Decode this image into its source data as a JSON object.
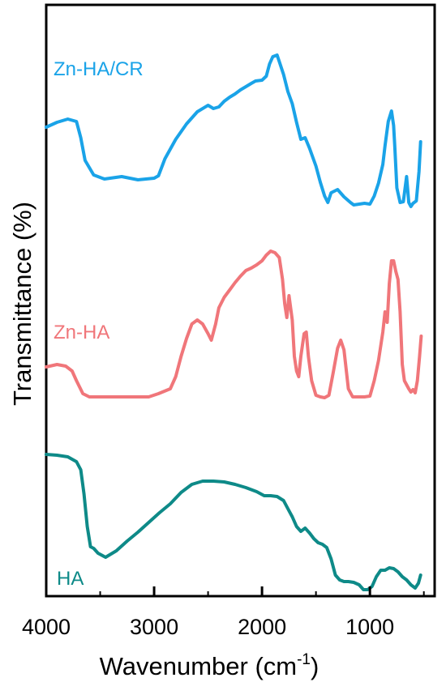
{
  "chart_data": {
    "type": "line",
    "title": "",
    "xlabel": "Wavenumber (cm",
    "xlabel_superscript": "-1",
    "xlabel_suffix": ")",
    "ylabel": "Transmittance (%)",
    "xlim": [
      4000,
      400
    ],
    "x_direction": "reversed",
    "xticks": [
      4000,
      3000,
      2000,
      1000
    ],
    "xtick_labels": [
      "4000",
      "3000",
      "2000",
      "1000"
    ],
    "y_tick_labels": false,
    "grid": false,
    "legend": "none",
    "series": [
      {
        "name": "Zn-HA/CR",
        "color": "#1aa3e8",
        "points": [
          [
            4000,
            157
          ],
          [
            3900,
            151
          ],
          [
            3800,
            147
          ],
          [
            3720,
            150
          ],
          [
            3680,
            170
          ],
          [
            3640,
            198
          ],
          [
            3560,
            216
          ],
          [
            3460,
            221
          ],
          [
            3300,
            218
          ],
          [
            3150,
            222
          ],
          [
            3000,
            220
          ],
          [
            2960,
            217
          ],
          [
            2900,
            196
          ],
          [
            2800,
            172
          ],
          [
            2700,
            153
          ],
          [
            2600,
            138
          ],
          [
            2500,
            130
          ],
          [
            2450,
            134
          ],
          [
            2400,
            132
          ],
          [
            2350,
            125
          ],
          [
            2300,
            120
          ],
          [
            2250,
            116
          ],
          [
            2200,
            111
          ],
          [
            2150,
            107
          ],
          [
            2100,
            103
          ],
          [
            2060,
            100
          ],
          [
            2000,
            99
          ],
          [
            1960,
            94
          ],
          [
            1930,
            79
          ],
          [
            1900,
            70
          ],
          [
            1860,
            68
          ],
          [
            1840,
            76
          ],
          [
            1800,
            92
          ],
          [
            1760,
            113
          ],
          [
            1720,
            128
          ],
          [
            1680,
            151
          ],
          [
            1640,
            172
          ],
          [
            1600,
            170
          ],
          [
            1560,
            183
          ],
          [
            1500,
            205
          ],
          [
            1460,
            225
          ],
          [
            1420,
            242
          ],
          [
            1390,
            250
          ],
          [
            1360,
            238
          ],
          [
            1300,
            234
          ],
          [
            1240,
            243
          ],
          [
            1180,
            250
          ],
          [
            1150,
            253
          ],
          [
            1100,
            252
          ],
          [
            1050,
            251
          ],
          [
            1000,
            252
          ],
          [
            960,
            242
          ],
          [
            920,
            226
          ],
          [
            880,
            203
          ],
          [
            860,
            180
          ],
          [
            830,
            150
          ],
          [
            800,
            137
          ],
          [
            780,
            155
          ],
          [
            770,
            180
          ],
          [
            750,
            232
          ],
          [
            720,
            250
          ],
          [
            690,
            249
          ],
          [
            660,
            218
          ],
          [
            640,
            250
          ],
          [
            620,
            255
          ],
          [
            600,
            251
          ],
          [
            570,
            248
          ],
          [
            545,
            212
          ],
          [
            530,
            175
          ]
        ]
      },
      {
        "name": "Zn-HA",
        "color": "#f0767a",
        "points": [
          [
            4000,
            453
          ],
          [
            3900,
            450
          ],
          [
            3820,
            452
          ],
          [
            3760,
            458
          ],
          [
            3720,
            470
          ],
          [
            3660,
            486
          ],
          [
            3600,
            490
          ],
          [
            3400,
            490
          ],
          [
            3200,
            490
          ],
          [
            3050,
            490
          ],
          [
            2960,
            486
          ],
          [
            2850,
            480
          ],
          [
            2800,
            465
          ],
          [
            2750,
            440
          ],
          [
            2700,
            418
          ],
          [
            2650,
            400
          ],
          [
            2600,
            395
          ],
          [
            2550,
            400
          ],
          [
            2500,
            412
          ],
          [
            2470,
            420
          ],
          [
            2430,
            400
          ],
          [
            2400,
            380
          ],
          [
            2350,
            367
          ],
          [
            2300,
            358
          ],
          [
            2250,
            349
          ],
          [
            2200,
            341
          ],
          [
            2150,
            334
          ],
          [
            2100,
            331
          ],
          [
            2050,
            327
          ],
          [
            2000,
            322
          ],
          [
            1960,
            315
          ],
          [
            1920,
            310
          ],
          [
            1880,
            312
          ],
          [
            1840,
            318
          ],
          [
            1810,
            345
          ],
          [
            1790,
            375
          ],
          [
            1770,
            392
          ],
          [
            1750,
            365
          ],
          [
            1720,
            395
          ],
          [
            1700,
            440
          ],
          [
            1680,
            458
          ],
          [
            1660,
            465
          ],
          [
            1640,
            440
          ],
          [
            1610,
            412
          ],
          [
            1590,
            410
          ],
          [
            1570,
            440
          ],
          [
            1540,
            470
          ],
          [
            1500,
            488
          ],
          [
            1460,
            490
          ],
          [
            1420,
            491
          ],
          [
            1380,
            488
          ],
          [
            1340,
            460
          ],
          [
            1300,
            430
          ],
          [
            1270,
            420
          ],
          [
            1240,
            432
          ],
          [
            1200,
            480
          ],
          [
            1160,
            490
          ],
          [
            1100,
            490
          ],
          [
            1050,
            490
          ],
          [
            1000,
            489
          ],
          [
            960,
            470
          ],
          [
            920,
            445
          ],
          [
            880,
            410
          ],
          [
            860,
            385
          ],
          [
            840,
            398
          ],
          [
            820,
            350
          ],
          [
            800,
            322
          ],
          [
            780,
            322
          ],
          [
            760,
            335
          ],
          [
            740,
            345
          ],
          [
            720,
            385
          ],
          [
            700,
            450
          ],
          [
            680,
            470
          ],
          [
            660,
            475
          ],
          [
            640,
            480
          ],
          [
            620,
            484
          ],
          [
            600,
            481
          ],
          [
            580,
            485
          ],
          [
            560,
            470
          ],
          [
            540,
            440
          ],
          [
            525,
            415
          ]
        ]
      },
      {
        "name": "HA",
        "color": "#0e8a88",
        "points": [
          [
            4000,
            561
          ],
          [
            3900,
            562
          ],
          [
            3800,
            564
          ],
          [
            3720,
            570
          ],
          [
            3680,
            580
          ],
          [
            3650,
            610
          ],
          [
            3620,
            650
          ],
          [
            3590,
            675
          ],
          [
            3560,
            677
          ],
          [
            3520,
            683
          ],
          [
            3450,
            688
          ],
          [
            3350,
            680
          ],
          [
            3250,
            668
          ],
          [
            3150,
            657
          ],
          [
            3050,
            645
          ],
          [
            2950,
            633
          ],
          [
            2850,
            622
          ],
          [
            2750,
            608
          ],
          [
            2650,
            598
          ],
          [
            2550,
            594
          ],
          [
            2450,
            594
          ],
          [
            2350,
            595
          ],
          [
            2250,
            598
          ],
          [
            2150,
            602
          ],
          [
            2050,
            607
          ],
          [
            1980,
            612
          ],
          [
            1920,
            612
          ],
          [
            1860,
            613
          ],
          [
            1800,
            618
          ],
          [
            1760,
            628
          ],
          [
            1720,
            638
          ],
          [
            1680,
            650
          ],
          [
            1640,
            656
          ],
          [
            1600,
            652
          ],
          [
            1560,
            658
          ],
          [
            1520,
            665
          ],
          [
            1480,
            670
          ],
          [
            1440,
            672
          ],
          [
            1400,
            676
          ],
          [
            1360,
            690
          ],
          [
            1320,
            710
          ],
          [
            1280,
            716
          ],
          [
            1240,
            718
          ],
          [
            1200,
            718
          ],
          [
            1150,
            719
          ],
          [
            1100,
            722
          ],
          [
            1060,
            728
          ],
          [
            1020,
            728
          ],
          [
            980,
            724
          ],
          [
            940,
            712
          ],
          [
            900,
            704
          ],
          [
            860,
            704
          ],
          [
            820,
            701
          ],
          [
            780,
            702
          ],
          [
            740,
            706
          ],
          [
            700,
            712
          ],
          [
            660,
            716
          ],
          [
            620,
            722
          ],
          [
            580,
            726
          ],
          [
            550,
            720
          ],
          [
            530,
            710
          ]
        ]
      }
    ]
  },
  "colors": {
    "axis": "#000000",
    "background": "#ffffff"
  }
}
